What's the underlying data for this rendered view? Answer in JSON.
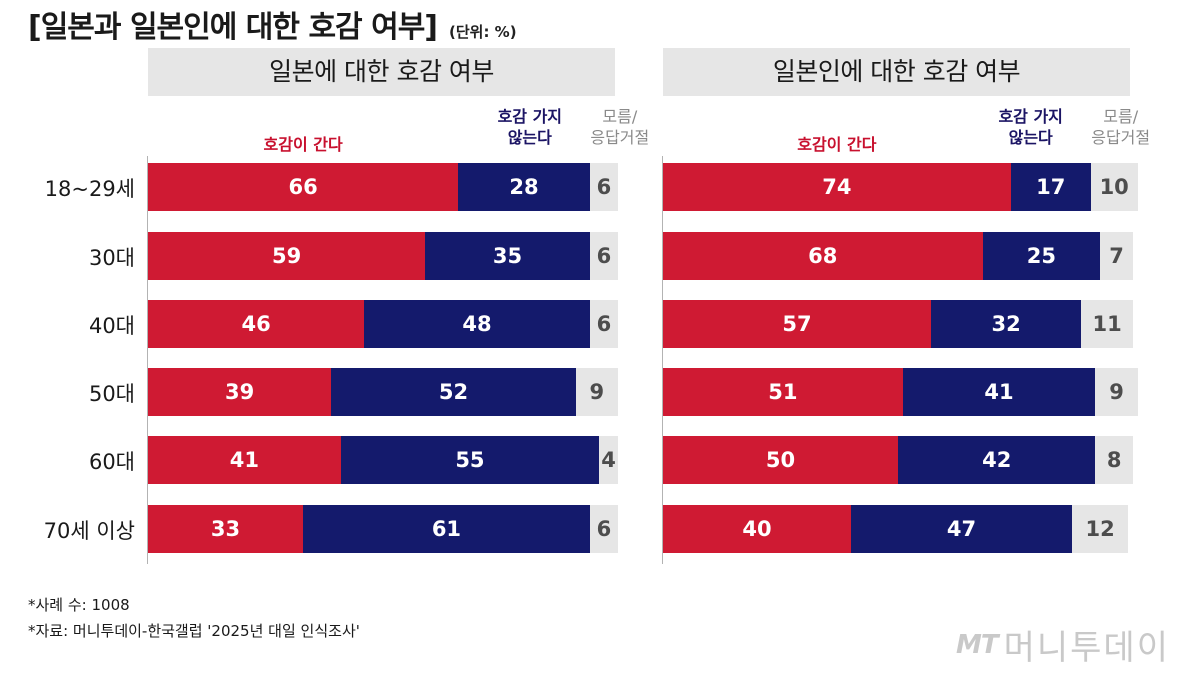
{
  "header": {
    "title": "[일본과 일본인에 대한 호감 여부]",
    "unit": "(단위: %)"
  },
  "legend": {
    "favorable": "호감이 간다",
    "unfavorable_line1": "호감 가지",
    "unfavorable_line2": "않는다",
    "dk_line1": "모름/",
    "dk_line2": "응답거절"
  },
  "chart_data": [
    {
      "type": "bar",
      "orientation": "horizontal-stacked",
      "title": "일본에 대한 호감 여부",
      "categories": [
        "18~29세",
        "30대",
        "40대",
        "50대",
        "60대",
        "70세 이상"
      ],
      "series": [
        {
          "name": "호감이 간다",
          "color": "#cf1a33",
          "values": [
            66,
            59,
            46,
            39,
            41,
            33
          ]
        },
        {
          "name": "호감 가지 않는다",
          "color": "#141a6c",
          "values": [
            28,
            35,
            48,
            52,
            55,
            61
          ]
        },
        {
          "name": "모름/응답거절",
          "color": "#e6e6e6",
          "values": [
            6,
            6,
            6,
            9,
            4,
            6
          ]
        }
      ]
    },
    {
      "type": "bar",
      "orientation": "horizontal-stacked",
      "title": "일본인에 대한 호감 여부",
      "categories": [
        "18~29세",
        "30대",
        "40대",
        "50대",
        "60대",
        "70세 이상"
      ],
      "series": [
        {
          "name": "호감이 간다",
          "color": "#cf1a33",
          "values": [
            74,
            68,
            57,
            51,
            50,
            40
          ]
        },
        {
          "name": "호감 가지 않는다",
          "color": "#141a6c",
          "values": [
            17,
            25,
            32,
            41,
            42,
            47
          ]
        },
        {
          "name": "모름/응답거절",
          "color": "#e6e6e6",
          "values": [
            10,
            7,
            11,
            9,
            8,
            12
          ]
        }
      ]
    }
  ],
  "footnotes": {
    "sample": "*사례 수: 1008",
    "source": "*자료: 머니투데이-한국갤럽 '2025년 대일 인식조사'"
  },
  "brand": {
    "mark": "MT",
    "name": "머니투데이"
  }
}
